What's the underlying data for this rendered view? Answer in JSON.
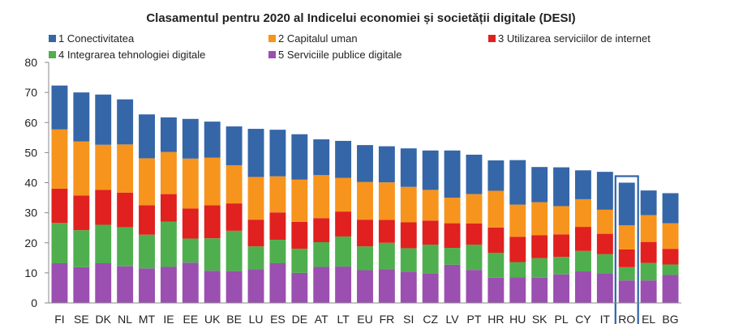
{
  "chart_data": {
    "type": "bar",
    "stacked": true,
    "title": "Clasamentul pentru 2020 al Indicelui economiei și societății digitale (DESI)",
    "ylim": [
      0,
      80
    ],
    "yticks": [
      0,
      10,
      20,
      30,
      40,
      50,
      60,
      70,
      80
    ],
    "grid": false,
    "legend": "top",
    "categories": [
      "FI",
      "SE",
      "DK",
      "NL",
      "MT",
      "IE",
      "EE",
      "UK",
      "BE",
      "LU",
      "ES",
      "DE",
      "AT",
      "LT",
      "EU",
      "FR",
      "SI",
      "CZ",
      "LV",
      "PT",
      "HR",
      "HU",
      "SK",
      "PL",
      "CY",
      "IT",
      "RO",
      "EL",
      "BG"
    ],
    "highlight": "RO",
    "series": [
      {
        "name": "5 Serviciile publice digitale",
        "color": "#9b4fb0",
        "values": [
          13.2,
          11.9,
          13.2,
          12.2,
          11.5,
          12.0,
          13.4,
          10.7,
          10.6,
          11.2,
          13.2,
          10.0,
          12.0,
          12.1,
          10.9,
          11.2,
          10.4,
          9.8,
          12.7,
          11.0,
          8.4,
          8.5,
          8.4,
          9.5,
          10.5,
          9.9,
          7.5,
          7.5,
          9.3
        ]
      },
      {
        "name": "4 Integrarea tehnologiei digitale",
        "color": "#4faf4f",
        "values": [
          13.4,
          12.3,
          12.8,
          13.0,
          11.2,
          15.0,
          8.0,
          10.8,
          13.4,
          7.6,
          7.8,
          8.0,
          8.2,
          10.0,
          7.9,
          8.8,
          7.8,
          9.6,
          5.6,
          8.4,
          8.3,
          5.1,
          6.5,
          5.8,
          6.8,
          6.3,
          4.4,
          5.8,
          3.5
        ]
      },
      {
        "name": "3 Utilizarea serviciilor de internet",
        "color": "#e0211f",
        "values": [
          11.4,
          11.5,
          11.6,
          11.5,
          9.8,
          9.2,
          10.0,
          11.0,
          9.1,
          8.9,
          9.1,
          9.0,
          8.0,
          8.3,
          8.9,
          7.6,
          8.6,
          8.0,
          8.2,
          7.0,
          8.4,
          8.4,
          7.6,
          7.5,
          8.0,
          6.8,
          5.9,
          7.0,
          5.2
        ]
      },
      {
        "name": "2 Capitalul uman",
        "color": "#f7941d",
        "values": [
          19.7,
          18.0,
          15.0,
          16.0,
          15.6,
          14.0,
          16.6,
          15.8,
          12.7,
          14.2,
          12.0,
          14.0,
          14.3,
          11.2,
          12.5,
          12.5,
          11.8,
          10.2,
          8.5,
          9.8,
          12.2,
          10.7,
          11.0,
          9.4,
          9.2,
          8.0,
          8.0,
          8.9,
          8.5
        ]
      },
      {
        "name": "1 Conectivitatea",
        "color": "#3566a8",
        "values": [
          14.6,
          16.3,
          16.7,
          15.0,
          14.6,
          11.5,
          13.2,
          12.0,
          12.9,
          16.0,
          15.5,
          15.1,
          11.9,
          12.3,
          12.3,
          12.0,
          12.8,
          13.1,
          15.7,
          13.1,
          10.1,
          14.8,
          11.7,
          12.9,
          9.6,
          12.6,
          14.2,
          8.2,
          10.0
        ]
      }
    ]
  },
  "legend_entries": [
    {
      "label": "1 Conectivitatea",
      "color": "#3566a8"
    },
    {
      "label": "2 Capitalul uman",
      "color": "#f7941d"
    },
    {
      "label": "3 Utilizarea serviciilor de internet",
      "color": "#e0211f"
    },
    {
      "label": "4 Integrarea tehnologiei digitale",
      "color": "#4faf4f"
    },
    {
      "label": "5 Serviciile publice digitale",
      "color": "#9b4fb0"
    }
  ]
}
